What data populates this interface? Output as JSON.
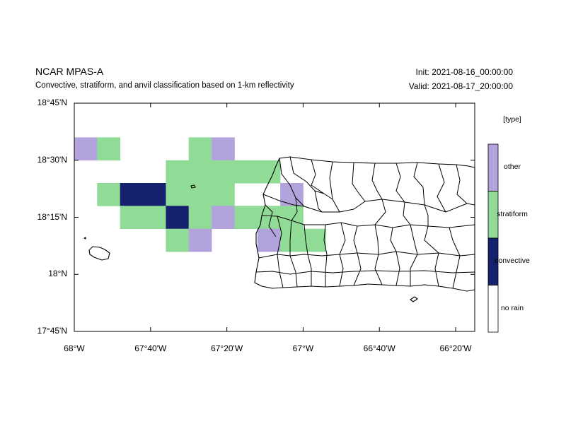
{
  "header": {
    "title": "NCAR MPAS-A",
    "subtitle": "Convective, stratiform, and anvil classification based on 1-km reflectivity",
    "init": "Init: 2021-08-16_00:00:00",
    "valid": "Valid: 2021-08-17_20:00:00"
  },
  "axes": {
    "lat_ticks": [
      {
        "label": "18°45'N",
        "value": 18.75
      },
      {
        "label": "18°30'N",
        "value": 18.5
      },
      {
        "label": "18°15'N",
        "value": 18.25
      },
      {
        "label": "18°N",
        "value": 18.0
      },
      {
        "label": "17°45'N",
        "value": 17.75
      }
    ],
    "lon_ticks": [
      {
        "label": "68°W",
        "value": -68.0
      },
      {
        "label": "67°40'W",
        "value": -67.6667
      },
      {
        "label": "67°20'W",
        "value": -67.3333
      },
      {
        "label": "67°W",
        "value": -67.0
      },
      {
        "label": "66°40'W",
        "value": -66.6667
      },
      {
        "label": "66°20'W",
        "value": -66.3333
      }
    ],
    "lon_range": [
      -68.0,
      -66.25
    ],
    "lat_range": [
      17.75,
      18.75
    ]
  },
  "legend": {
    "title": "[type]",
    "categories": [
      {
        "label": "other",
        "color": "#b3a3dc"
      },
      {
        "label": "stratiform",
        "color": "#90dc96"
      },
      {
        "label": "convective",
        "color": "#15216f"
      },
      {
        "label": "no rain",
        "color": "#ffffff"
      }
    ]
  },
  "classification_grid": {
    "cell_size_deg": 0.1,
    "cells": [
      {
        "lon": -67.95,
        "lat": 18.55,
        "type": "other"
      },
      {
        "lon": -67.85,
        "lat": 18.55,
        "type": "stratiform"
      },
      {
        "lon": -67.45,
        "lat": 18.55,
        "type": "stratiform"
      },
      {
        "lon": -67.35,
        "lat": 18.55,
        "type": "other"
      },
      {
        "lon": -67.55,
        "lat": 18.45,
        "type": "stratiform"
      },
      {
        "lon": -67.45,
        "lat": 18.45,
        "type": "stratiform"
      },
      {
        "lon": -67.35,
        "lat": 18.45,
        "type": "stratiform"
      },
      {
        "lon": -67.25,
        "lat": 18.45,
        "type": "stratiform"
      },
      {
        "lon": -67.15,
        "lat": 18.45,
        "type": "stratiform"
      },
      {
        "lon": -67.85,
        "lat": 18.35,
        "type": "stratiform"
      },
      {
        "lon": -67.75,
        "lat": 18.35,
        "type": "convective"
      },
      {
        "lon": -67.65,
        "lat": 18.35,
        "type": "convective"
      },
      {
        "lon": -67.55,
        "lat": 18.35,
        "type": "stratiform"
      },
      {
        "lon": -67.45,
        "lat": 18.35,
        "type": "stratiform"
      },
      {
        "lon": -67.35,
        "lat": 18.35,
        "type": "stratiform"
      },
      {
        "lon": -67.05,
        "lat": 18.35,
        "type": "other"
      },
      {
        "lon": -67.75,
        "lat": 18.25,
        "type": "stratiform"
      },
      {
        "lon": -67.65,
        "lat": 18.25,
        "type": "stratiform"
      },
      {
        "lon": -67.55,
        "lat": 18.25,
        "type": "convective"
      },
      {
        "lon": -67.45,
        "lat": 18.25,
        "type": "stratiform"
      },
      {
        "lon": -67.35,
        "lat": 18.25,
        "type": "other"
      },
      {
        "lon": -67.25,
        "lat": 18.25,
        "type": "stratiform"
      },
      {
        "lon": -67.15,
        "lat": 18.25,
        "type": "stratiform"
      },
      {
        "lon": -67.05,
        "lat": 18.25,
        "type": "stratiform"
      },
      {
        "lon": -67.55,
        "lat": 18.15,
        "type": "stratiform"
      },
      {
        "lon": -67.45,
        "lat": 18.15,
        "type": "other"
      },
      {
        "lon": -67.15,
        "lat": 18.15,
        "type": "other"
      },
      {
        "lon": -67.05,
        "lat": 18.15,
        "type": "stratiform"
      },
      {
        "lon": -66.95,
        "lat": 18.15,
        "type": "stratiform"
      }
    ]
  }
}
